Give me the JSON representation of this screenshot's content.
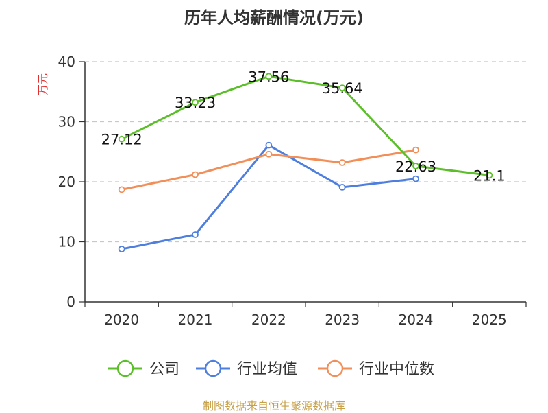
{
  "chart_data": {
    "type": "line",
    "title": "历年人均薪酬情况(万元)",
    "ylabel": "万元",
    "xlabel": "",
    "categories": [
      "2020",
      "2021",
      "2022",
      "2023",
      "2024",
      "2025"
    ],
    "ylim": [
      0,
      40
    ],
    "yticks": [
      0,
      10,
      20,
      30,
      40
    ],
    "grid": true,
    "legend_position": "bottom",
    "series": [
      {
        "name": "公司",
        "color": "#5cbf2a",
        "values": [
          27.12,
          33.23,
          37.56,
          35.64,
          22.63,
          21.1
        ],
        "labels": [
          "27.12",
          "33.23",
          "37.56",
          "35.64",
          "22.63",
          "21.1"
        ]
      },
      {
        "name": "行业均值",
        "color": "#4f7fde",
        "values": [
          8.8,
          11.2,
          26.1,
          19.1,
          20.5,
          null
        ]
      },
      {
        "name": "行业中位数",
        "color": "#f28e58",
        "values": [
          18.7,
          21.2,
          24.6,
          23.2,
          25.3,
          null
        ]
      }
    ]
  },
  "source_note": "制图数据来自恒生聚源数据库"
}
